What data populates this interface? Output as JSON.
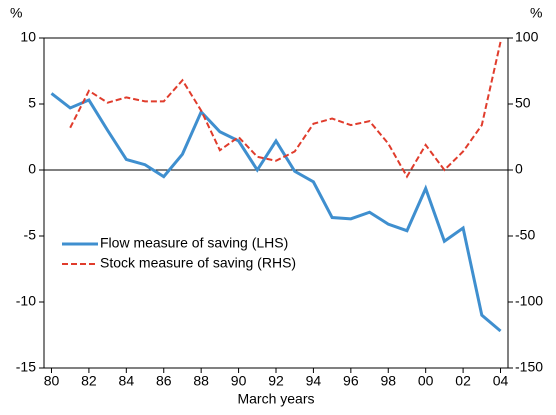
{
  "chart_data": {
    "type": "line",
    "ylabel": "%",
    "y2label": "%",
    "xlabel": "March years",
    "x": [
      1980,
      1981,
      1982,
      1983,
      1984,
      1985,
      1986,
      1987,
      1988,
      1989,
      1990,
      1991,
      1992,
      1993,
      1994,
      1995,
      1996,
      1997,
      1998,
      1999,
      2000,
      2001,
      2002,
      2003,
      2004
    ],
    "xlim": [
      1979.6,
      2004.4
    ],
    "xticks": [
      {
        "value": 1980,
        "label": "80"
      },
      {
        "value": 1982,
        "label": "82"
      },
      {
        "value": 1984,
        "label": "84"
      },
      {
        "value": 1986,
        "label": "86"
      },
      {
        "value": 1988,
        "label": "88"
      },
      {
        "value": 1990,
        "label": "90"
      },
      {
        "value": 1992,
        "label": "92"
      },
      {
        "value": 1994,
        "label": "94"
      },
      {
        "value": 1996,
        "label": "96"
      },
      {
        "value": 1998,
        "label": "98"
      },
      {
        "value": 2000,
        "label": "00"
      },
      {
        "value": 2002,
        "label": "02"
      },
      {
        "value": 2004,
        "label": "04"
      }
    ],
    "ylim": [
      -15,
      10
    ],
    "yticks": [
      -15,
      -10,
      -5,
      0,
      5,
      10
    ],
    "y2lim": [
      -150,
      100
    ],
    "y2ticks": [
      -150,
      -100,
      -50,
      0,
      50,
      100
    ],
    "series": [
      {
        "name": "Flow measure of saving (LHS)",
        "color": "#3f8fcf",
        "dash": "solid",
        "values": [
          5.8,
          4.7,
          5.3,
          3.0,
          0.8,
          0.4,
          -0.5,
          1.2,
          4.4,
          2.9,
          2.2,
          0.0,
          2.2,
          -0.1,
          -0.9,
          -3.6,
          -3.7,
          -3.2,
          -4.1,
          -4.6,
          -1.4,
          -5.4,
          -4.4,
          -11.0,
          -12.2
        ]
      },
      {
        "name": "Stock measure of saving (RHS)",
        "color": "#e03c2c",
        "dash": "dashed",
        "axis": "y2",
        "values": [
          null,
          32,
          60,
          51,
          55,
          52,
          52,
          68,
          45,
          15,
          25,
          10,
          7,
          14,
          35,
          39,
          34,
          37,
          20,
          -5,
          19,
          0,
          14,
          34,
          97
        ]
      }
    ]
  }
}
